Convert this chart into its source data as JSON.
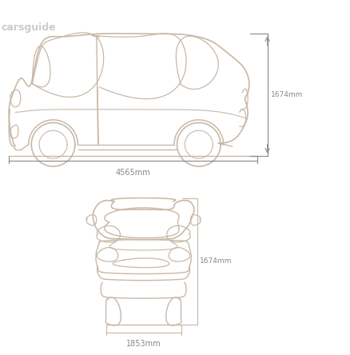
{
  "bg_color": "#ffffff",
  "line_color": "#c8b8a8",
  "dim_color": "#888888",
  "watermark": "carsguide",
  "height_mm": "1674mm",
  "length_mm": "4565mm",
  "width_mm": "1853mm",
  "fig_width": 4.38,
  "fig_height": 4.44,
  "dpi": 100
}
